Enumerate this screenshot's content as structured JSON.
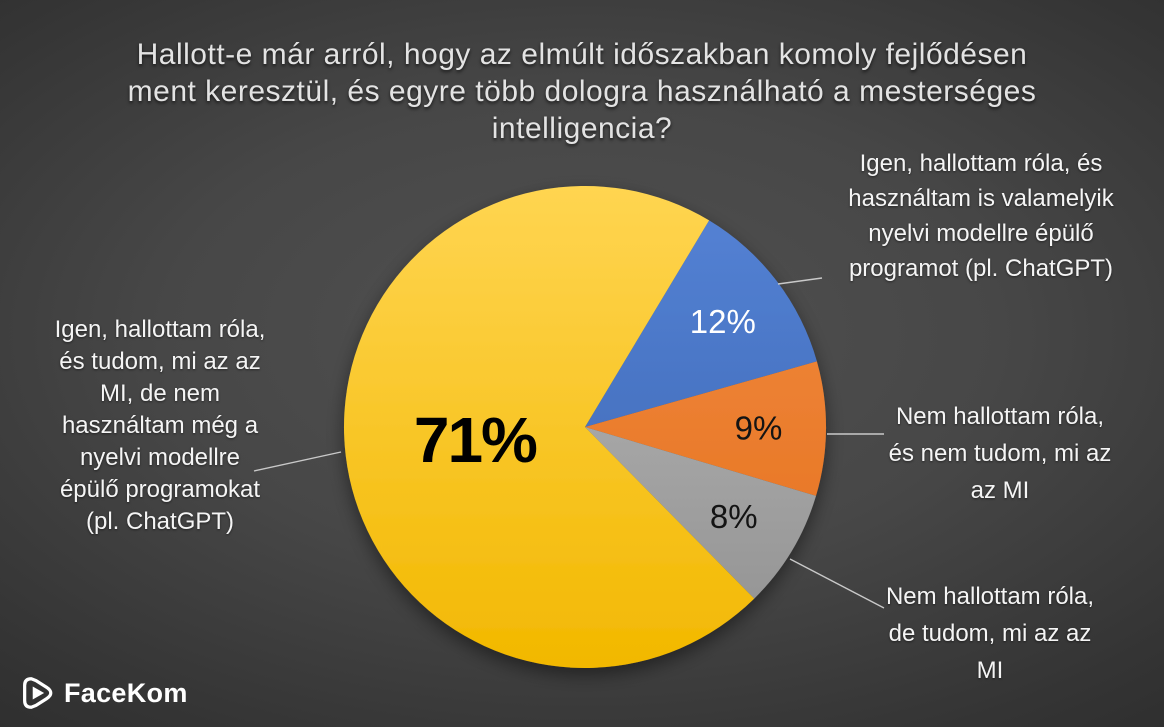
{
  "logo": {
    "text": "FaceKom"
  },
  "chart_data": {
    "type": "pie",
    "title": "Hallott-e már arról, hogy az elmúlt időszakban komoly fejlődésen ment keresztül, és egyre több dologra használható a mesterséges intelligencia?",
    "start_angle_deg": 31,
    "legend_position": "callout-labels-around-pie",
    "grid": false,
    "slices": [
      {
        "id": "heard-and-used",
        "label": "Igen, hallottam róla, és használtam is valamelyik nyelvi modellre épülő programot (pl. ChatGPT)",
        "value": 12,
        "pct_label": "12%",
        "color": "#4472C4",
        "pct_label_color": "#FFFFFF"
      },
      {
        "id": "not-heard-dont-know",
        "label": "Nem hallottam róla, és nem tudom, mi az az MI",
        "value": 9,
        "pct_label": "9%",
        "color": "#ED7D31",
        "pct_label_color": "#141414"
      },
      {
        "id": "not-heard-but-know",
        "label": "Nem hallottam róla, de tudom, mi az az MI",
        "value": 8,
        "pct_label": "8%",
        "color": "#A5A5A5",
        "pct_label_color": "#141414"
      },
      {
        "id": "heard-not-used",
        "label": "Igen, hallottam róla, és tudom, mi az az MI, de nem használtam még a nyelvi modellre épülő programokat (pl. ChatGPT)",
        "value": 71,
        "pct_label": "71%",
        "color": "#FFC415",
        "pct_label_color": "#000000"
      }
    ]
  }
}
